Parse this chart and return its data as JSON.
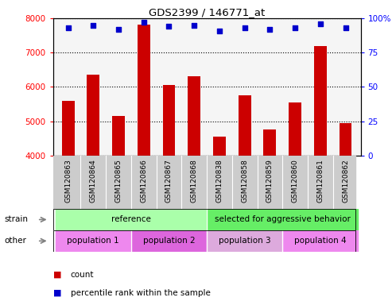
{
  "title": "GDS2399 / 146771_at",
  "samples": [
    "GSM120863",
    "GSM120864",
    "GSM120865",
    "GSM120866",
    "GSM120867",
    "GSM120868",
    "GSM120838",
    "GSM120858",
    "GSM120859",
    "GSM120860",
    "GSM120861",
    "GSM120862"
  ],
  "counts": [
    5600,
    6350,
    5150,
    7820,
    6050,
    6300,
    4550,
    5750,
    4750,
    5550,
    7200,
    4950
  ],
  "percentile_ranks": [
    93,
    95,
    92,
    97,
    94,
    95,
    91,
    93,
    92,
    93,
    96,
    93
  ],
  "ylim_left": [
    4000,
    8000
  ],
  "ylim_right": [
    0,
    100
  ],
  "yticks_left": [
    4000,
    5000,
    6000,
    7000,
    8000
  ],
  "yticks_right": [
    0,
    25,
    50,
    75,
    100
  ],
  "bar_color": "#cc0000",
  "dot_color": "#0000cc",
  "bar_width": 0.5,
  "strain_groups": [
    {
      "label": "reference",
      "start": 0,
      "end": 5,
      "color": "#aaffaa"
    },
    {
      "label": "selected for aggressive behavior",
      "start": 6,
      "end": 11,
      "color": "#66ee66"
    }
  ],
  "other_groups": [
    {
      "label": "population 1",
      "start": 0,
      "end": 2,
      "color": "#ee88ee"
    },
    {
      "label": "population 2",
      "start": 3,
      "end": 5,
      "color": "#dd66dd"
    },
    {
      "label": "population 3",
      "start": 6,
      "end": 8,
      "color": "#ddaadd"
    },
    {
      "label": "population 4",
      "start": 9,
      "end": 11,
      "color": "#ee88ee"
    }
  ],
  "legend_count_color": "#cc0000",
  "legend_pct_color": "#0000cc",
  "bg_plot": "#f5f5f5",
  "xtick_bg": "#cccccc"
}
